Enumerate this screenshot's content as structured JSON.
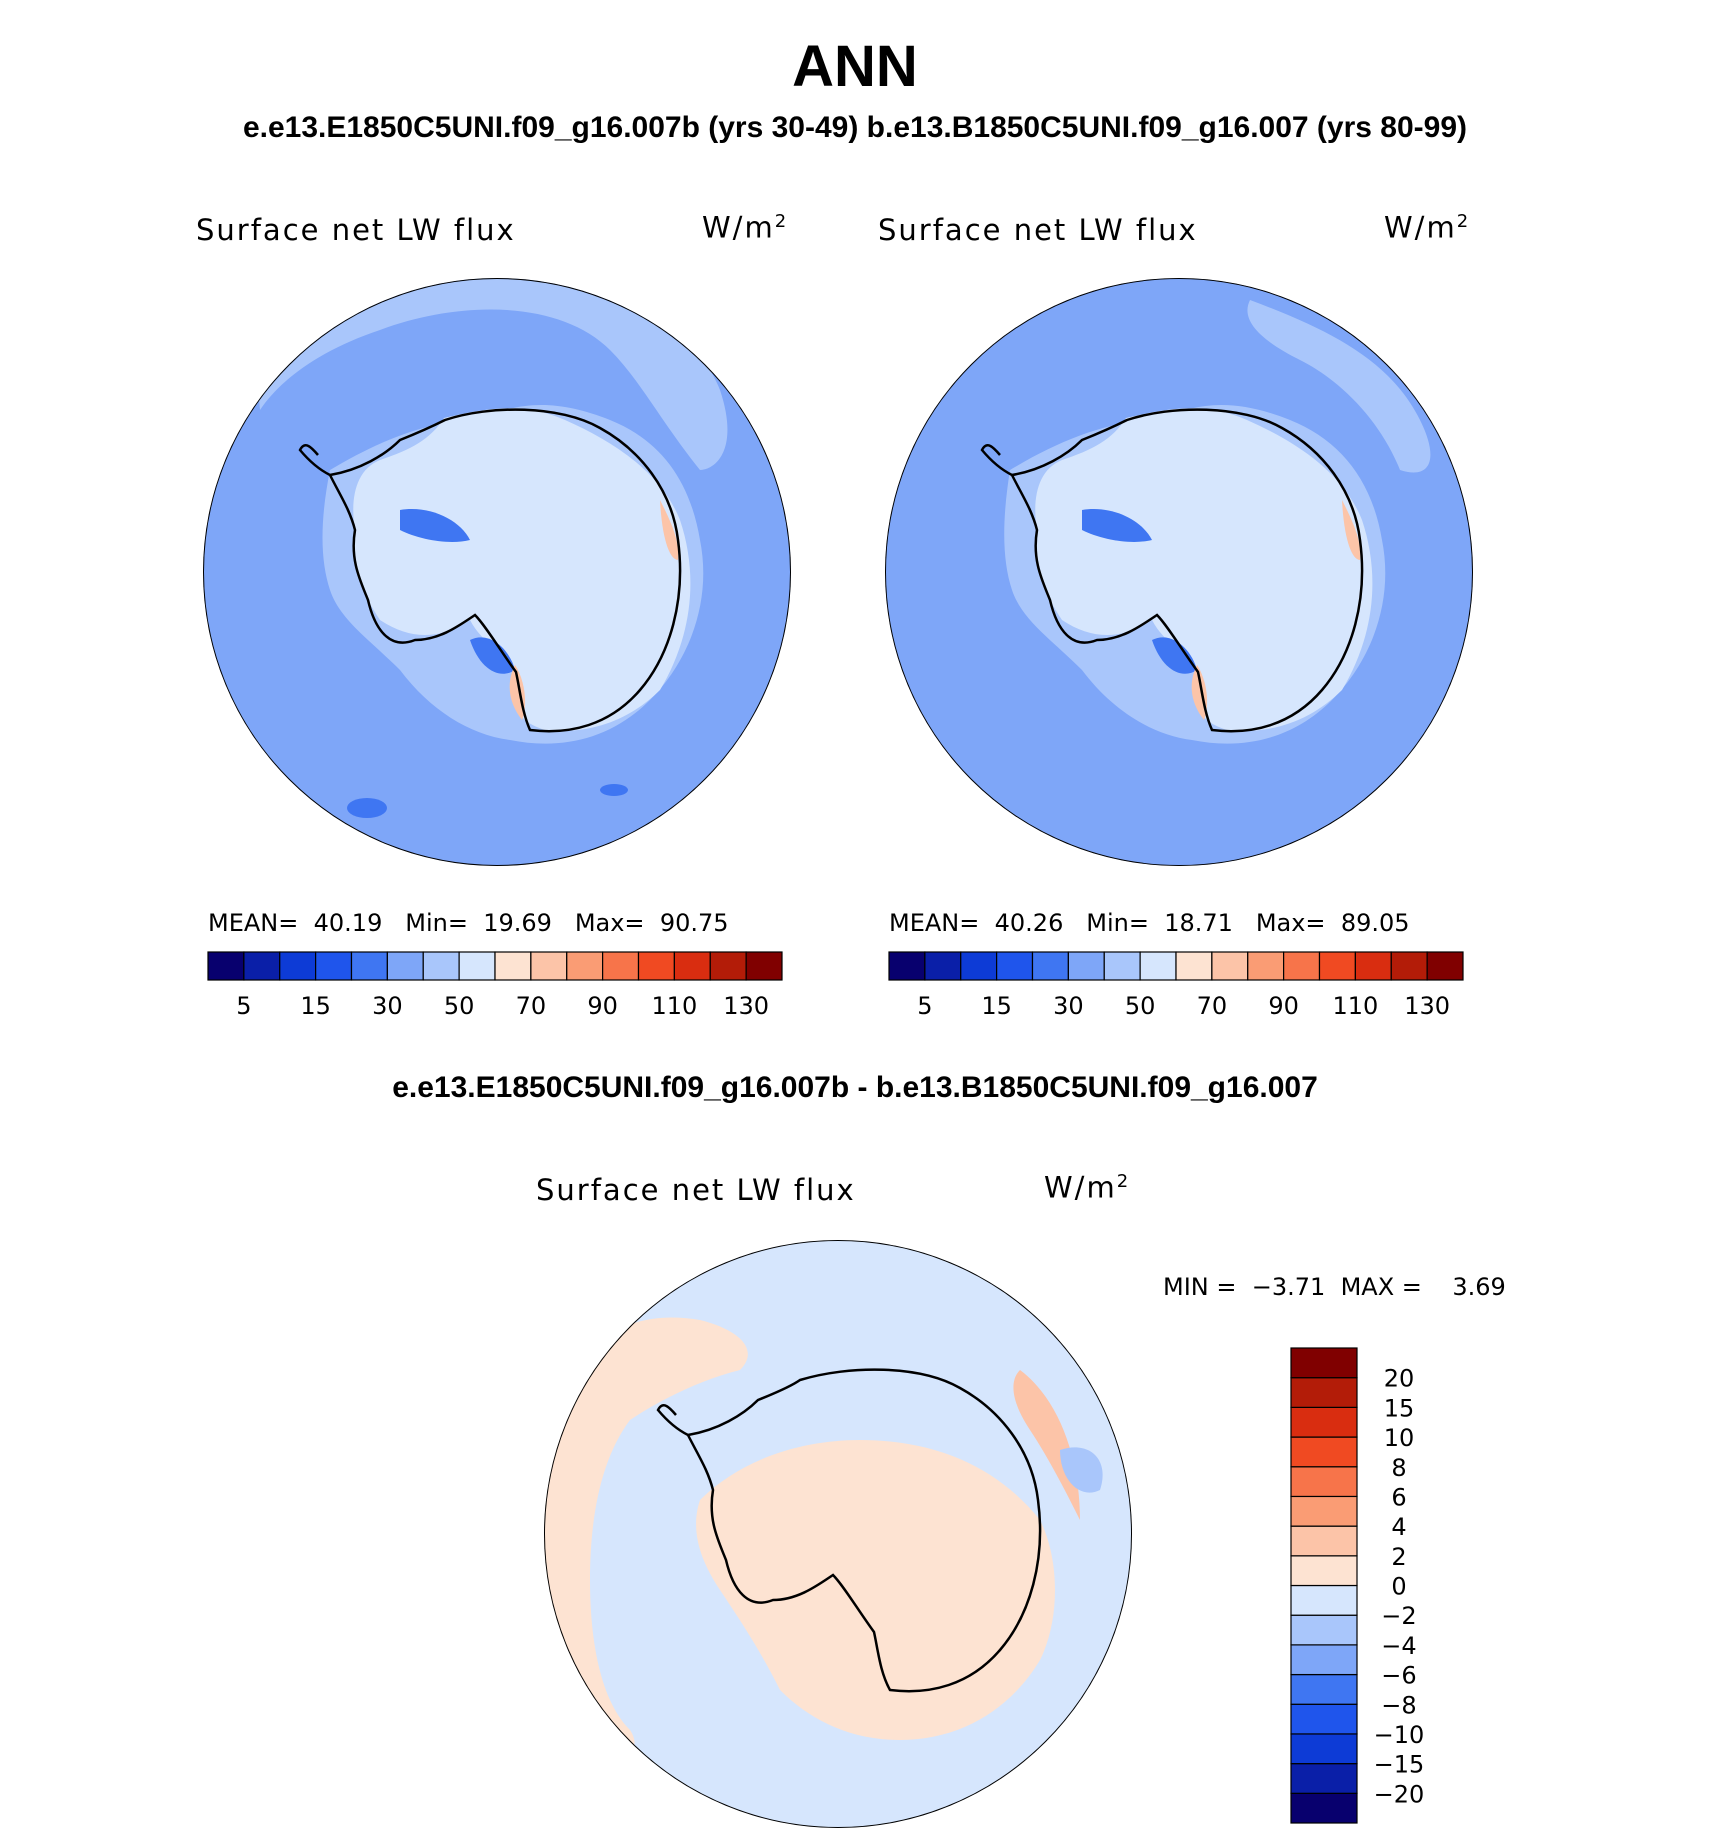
{
  "title": "ANN",
  "subtitle": "e.e13.E1850C5UNI.f09_g16.007b (yrs 30-49)  b.e13.B1850C5UNI.f09_g16.007 (yrs 80-99)",
  "diff_title": "e.e13.E1850C5UNI.f09_g16.007b - b.e13.B1850C5UNI.f09_g16.007",
  "colors": {
    "abs_scale": [
      "#08006e",
      "#0a1fa8",
      "#0d3bd6",
      "#1f55ec",
      "#3f76f2",
      "#7ea6f8",
      "#a9c6fb",
      "#d6e6fd",
      "#fde3d2",
      "#fcc4a8",
      "#fa9c74",
      "#f7744a",
      "#f04a22",
      "#d92d10",
      "#b31c08",
      "#800000"
    ],
    "diff_scale": [
      "#08006e",
      "#0a1fa8",
      "#0d3bd6",
      "#1f55ec",
      "#3f76f2",
      "#7ea6f8",
      "#a9c6fb",
      "#d6e6fd",
      "#fde3d2",
      "#fcc4a8",
      "#fa9c74",
      "#f7744a",
      "#f04a22",
      "#d92d10",
      "#b31c08",
      "#800000"
    ],
    "coastline": "#000000"
  },
  "chart_data": [
    {
      "type": "heatmap",
      "panel": "left",
      "projection": "south-polar-stereographic",
      "variable": "Surface net LW flux",
      "units": "W/m²",
      "units_text": "W/m",
      "units_exp": "2",
      "stats": {
        "mean_label": "MEAN=",
        "mean": "40.19",
        "min_label": "Min=",
        "min": "19.69",
        "max_label": "Max=",
        "max": "90.75"
      },
      "colorbar_ticks": [
        "5",
        "15",
        "30",
        "50",
        "70",
        "90",
        "110",
        "130"
      ],
      "colorbar_levels": [
        0,
        5,
        10,
        15,
        20,
        30,
        40,
        50,
        60,
        70,
        80,
        90,
        100,
        110,
        120,
        130
      ]
    },
    {
      "type": "heatmap",
      "panel": "right",
      "projection": "south-polar-stereographic",
      "variable": "Surface net LW flux",
      "units": "W/m²",
      "units_text": "W/m",
      "units_exp": "2",
      "stats": {
        "mean_label": "MEAN=",
        "mean": "40.26",
        "min_label": "Min=",
        "min": "18.71",
        "max_label": "Max=",
        "max": "89.05"
      },
      "colorbar_ticks": [
        "5",
        "15",
        "30",
        "50",
        "70",
        "90",
        "110",
        "130"
      ],
      "colorbar_levels": [
        0,
        5,
        10,
        15,
        20,
        30,
        40,
        50,
        60,
        70,
        80,
        90,
        100,
        110,
        120,
        130
      ]
    },
    {
      "type": "heatmap",
      "panel": "difference",
      "projection": "south-polar-stereographic",
      "variable": "Surface net LW flux",
      "units": "W/m²",
      "units_text": "W/m",
      "units_exp": "2",
      "stats": {
        "min_label": "MIN =",
        "min": "−3.71",
        "max_label": "MAX =",
        "max": "3.69"
      },
      "colorbar_ticks": [
        "20",
        "15",
        "10",
        "8",
        "6",
        "4",
        "2",
        "0",
        "−2",
        "−4",
        "−6",
        "−8",
        "−10",
        "−15",
        "−20"
      ],
      "colorbar_orientation": "vertical"
    }
  ]
}
